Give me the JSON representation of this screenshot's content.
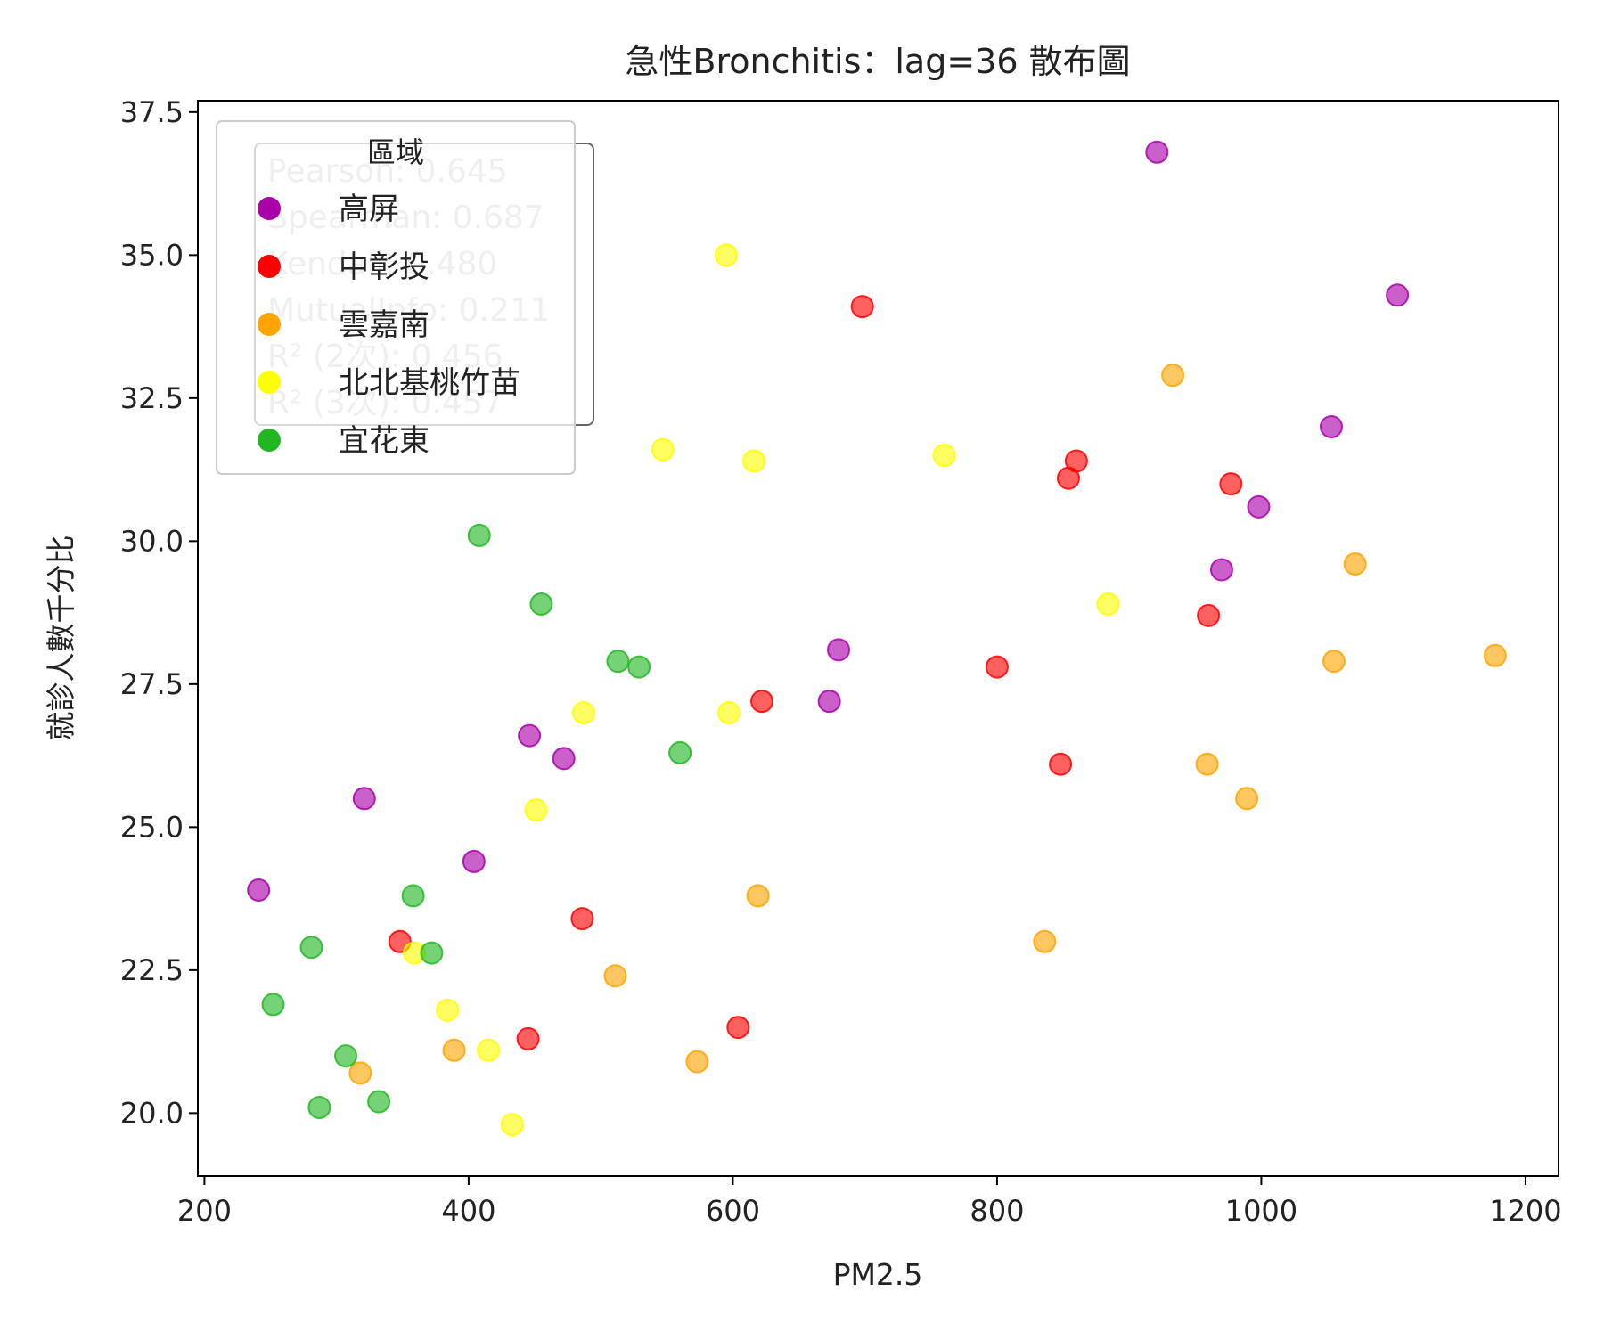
{
  "chart_data": {
    "type": "scatter",
    "title": "急性Bronchitis：lag=36 散布圖",
    "xlabel": "PM2.5",
    "ylabel": "就診人數千分比",
    "xlim": [
      195,
      1225
    ],
    "ylim": [
      18.9,
      37.7
    ],
    "xticks": [
      200,
      400,
      600,
      800,
      1000,
      1200
    ],
    "yticks": [
      20.0,
      22.5,
      25.0,
      27.5,
      30.0,
      32.5,
      35.0,
      37.5
    ],
    "xtick_labels": [
      "200",
      "400",
      "600",
      "800",
      "1000",
      "1200"
    ],
    "ytick_labels": [
      "20.0",
      "22.5",
      "25.0",
      "27.5",
      "30.0",
      "32.5",
      "35.0",
      "37.5"
    ],
    "grid": false,
    "legend": {
      "title": "區域",
      "position": "top-left"
    },
    "stats_box": {
      "position": "top-left",
      "lines": [
        "Pearson: 0.645",
        "Spearman: 0.687",
        "Kendall: 0.480",
        "MutualInfo: 0.211",
        "R² (2次): 0.456",
        "R² (3次): 0.457"
      ]
    },
    "series": [
      {
        "name": "高屏",
        "color": "#aa00aa",
        "points": [
          [
            921,
            36.8
          ],
          [
            1103,
            34.3
          ],
          [
            1053,
            32.0
          ],
          [
            998,
            30.6
          ],
          [
            970,
            29.5
          ],
          [
            680,
            28.1
          ],
          [
            673,
            27.2
          ],
          [
            446,
            26.6
          ],
          [
            472,
            26.2
          ],
          [
            321,
            25.5
          ],
          [
            404,
            24.4
          ],
          [
            241,
            23.9
          ]
        ]
      },
      {
        "name": "中彰投",
        "color": "#ff0000",
        "points": [
          [
            698,
            34.1
          ],
          [
            860,
            31.4
          ],
          [
            854,
            31.1
          ],
          [
            977,
            31.0
          ],
          [
            960,
            28.7
          ],
          [
            800,
            27.8
          ],
          [
            622,
            27.2
          ],
          [
            848,
            26.1
          ],
          [
            486,
            23.4
          ],
          [
            348,
            23.0
          ],
          [
            604,
            21.5
          ],
          [
            445,
            21.3
          ]
        ]
      },
      {
        "name": "雲嘉南",
        "color": "#ffa500",
        "points": [
          [
            933,
            32.9
          ],
          [
            1071,
            29.6
          ],
          [
            1177,
            28.0
          ],
          [
            1055,
            27.9
          ],
          [
            959,
            26.1
          ],
          [
            989,
            25.5
          ],
          [
            619,
            23.8
          ],
          [
            836,
            23.0
          ],
          [
            511,
            22.4
          ],
          [
            389,
            21.1
          ],
          [
            573,
            20.9
          ],
          [
            318,
            20.7
          ]
        ]
      },
      {
        "name": "北北基桃竹苗",
        "color": "#ffff00",
        "points": [
          [
            595,
            35.0
          ],
          [
            547,
            31.6
          ],
          [
            616,
            31.4
          ],
          [
            760,
            31.5
          ],
          [
            884,
            28.9
          ],
          [
            487,
            27.0
          ],
          [
            597,
            27.0
          ],
          [
            451,
            25.3
          ],
          [
            359,
            22.8
          ],
          [
            384,
            21.8
          ],
          [
            415,
            21.1
          ],
          [
            433,
            19.8
          ]
        ]
      },
      {
        "name": "宜花東",
        "color": "#22b722",
        "points": [
          [
            408,
            30.1
          ],
          [
            455,
            28.9
          ],
          [
            513,
            27.9
          ],
          [
            529,
            27.8
          ],
          [
            560,
            26.3
          ],
          [
            358,
            23.8
          ],
          [
            372,
            22.8
          ],
          [
            281,
            22.9
          ],
          [
            252,
            21.9
          ],
          [
            307,
            21.0
          ],
          [
            287,
            20.1
          ],
          [
            332,
            20.2
          ]
        ]
      }
    ]
  }
}
